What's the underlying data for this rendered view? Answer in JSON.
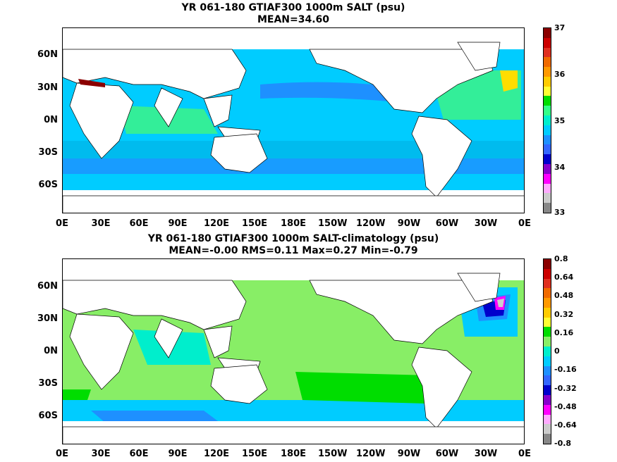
{
  "top": {
    "title_line1": "YR 061-180 GTIAF300 1000m SALT (psu)",
    "title_line2": "MEAN=34.60",
    "lat_labels": [
      "60N",
      "30N",
      "0N",
      "30S",
      "60S"
    ],
    "lon_labels": [
      "0E",
      "30E",
      "60E",
      "90E",
      "120E",
      "150E",
      "180E",
      "150W",
      "120W",
      "90W",
      "60W",
      "30W",
      "0E"
    ],
    "colorbar_labels": [
      "37",
      "36",
      "35",
      "34",
      "33"
    ],
    "colorbar_colors": [
      "#8b0000",
      "#cc0000",
      "#e03020",
      "#f06a00",
      "#ff9900",
      "#ffcc00",
      "#ffff33",
      "#00dd00",
      "#33ff88",
      "#00eecc",
      "#00ccff",
      "#1e90ff",
      "#3366ff",
      "#0000cc",
      "#8800cc",
      "#ff00ff",
      "#ffaaff",
      "#cccccc",
      "#888888"
    ]
  },
  "bottom": {
    "title_line1": "YR 061-180 GTIAF300 1000m SALT-climatology (psu)",
    "title_line2": "MEAN=-0.00   RMS=0.11   Max=0.27   Min=-0.79",
    "lat_labels": [
      "60N",
      "30N",
      "0N",
      "30S",
      "60S"
    ],
    "lon_labels": [
      "0E",
      "30E",
      "60E",
      "90E",
      "120E",
      "150E",
      "180E",
      "150W",
      "120W",
      "90W",
      "60W",
      "30W",
      "0E"
    ],
    "colorbar_labels": [
      "0.8",
      "0.64",
      "0.48",
      "0.32",
      "0.16",
      "0",
      "-0.16",
      "-0.32",
      "-0.48",
      "-0.64",
      "-0.8"
    ],
    "colorbar_colors": [
      "#8b0000",
      "#cc0000",
      "#e03020",
      "#f06a00",
      "#ff9900",
      "#ffcc00",
      "#ffff33",
      "#00dd00",
      "#88ee66",
      "#00eecc",
      "#00ccff",
      "#1e90ff",
      "#3366ff",
      "#0000cc",
      "#8800cc",
      "#ff00ff",
      "#ffaaff",
      "#cccccc",
      "#888888"
    ]
  }
}
